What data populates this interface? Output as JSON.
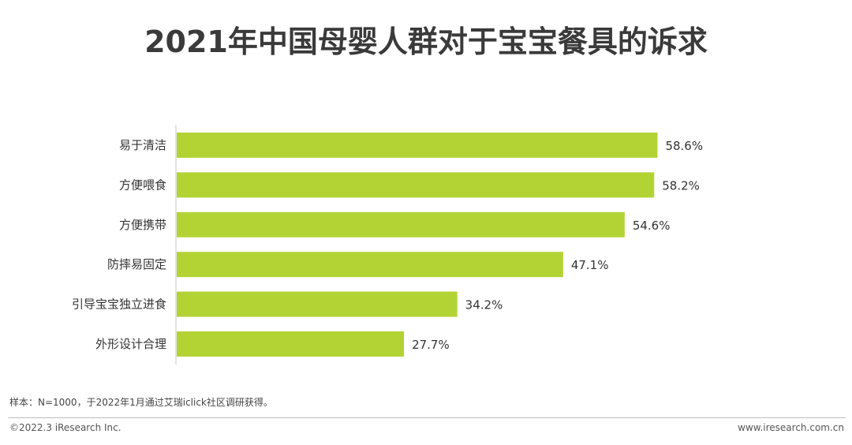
{
  "header": {
    "title": "2021年中国母婴人群对于宝宝餐具的诉求"
  },
  "chart_data": {
    "type": "bar",
    "orientation": "horizontal",
    "title": "2021年中国母婴人群对于宝宝餐具的诉求",
    "xlabel": "",
    "ylabel": "",
    "categories": [
      "易于清洁",
      "方便喂食",
      "方便携带",
      "防摔易固定",
      "引导宝宝独立进食",
      "外形设计合理"
    ],
    "values": [
      58.6,
      58.2,
      54.6,
      47.1,
      34.2,
      27.7
    ],
    "data_labels": [
      "58.6%",
      "58.2%",
      "54.6%",
      "47.1%",
      "34.2%",
      "27.7%"
    ],
    "unit": "%",
    "xlim": [
      0,
      60
    ],
    "grid": false,
    "legend": "none",
    "bar_color": "#b3d335"
  },
  "note": {
    "text": "样本：N=1000，于2022年1月通过艾瑞iclick社区调研获得。"
  },
  "footer": {
    "copyright": "©2022.3 iResearch Inc.",
    "website": "www.iresearch.com.cn"
  }
}
